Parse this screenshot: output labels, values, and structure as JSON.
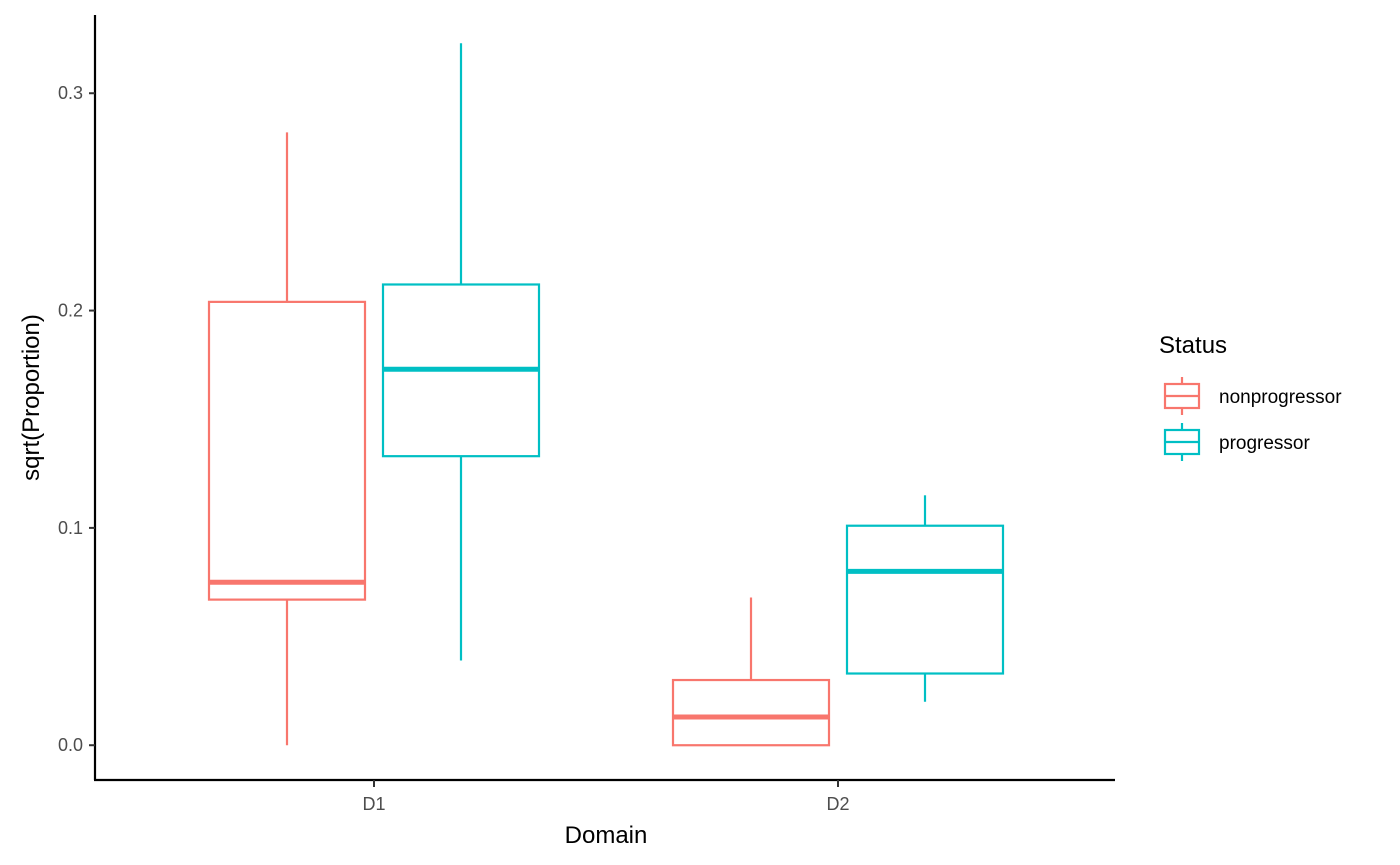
{
  "chart_data": {
    "type": "boxplot",
    "xlabel": "Domain",
    "ylabel": "sqrt(Proportion)",
    "categories": [
      "D1",
      "D2"
    ],
    "ylim": [
      -0.016,
      0.336
    ],
    "yticks": [
      "0.0",
      "0.1",
      "0.2",
      "0.3"
    ],
    "grid": false,
    "legend": {
      "title": "Status",
      "position": "right"
    },
    "series": [
      {
        "name": "nonprogressor",
        "color": "#F8766D",
        "boxes": [
          {
            "category": "D1",
            "min": 0.0,
            "q1": 0.067,
            "median": 0.075,
            "q3": 0.204,
            "max": 0.282
          },
          {
            "category": "D2",
            "min": 0.0,
            "q1": 0.0,
            "median": 0.013,
            "q3": 0.03,
            "max": 0.068
          }
        ]
      },
      {
        "name": "progressor",
        "color": "#00BFC4",
        "boxes": [
          {
            "category": "D1",
            "min": 0.039,
            "q1": 0.133,
            "median": 0.173,
            "q3": 0.212,
            "max": 0.323
          },
          {
            "category": "D2",
            "min": 0.02,
            "q1": 0.033,
            "median": 0.08,
            "q3": 0.101,
            "max": 0.115
          }
        ]
      }
    ]
  }
}
